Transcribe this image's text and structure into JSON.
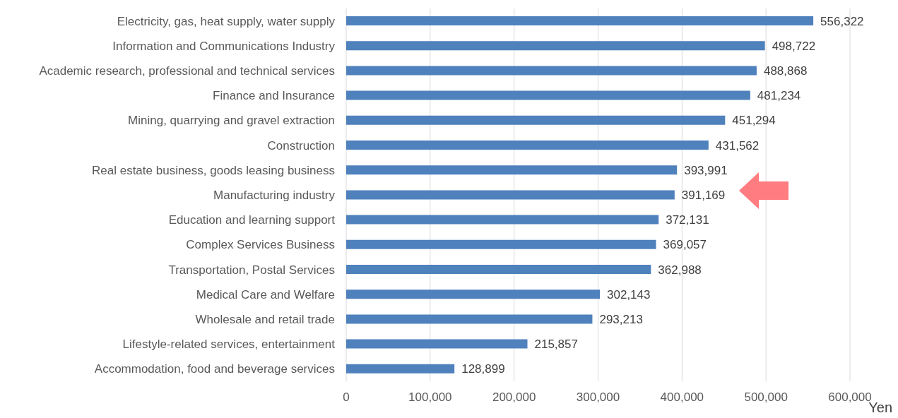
{
  "chart_data": {
    "type": "bar",
    "orientation": "horizontal",
    "categories": [
      "Electricity, gas, heat supply, water supply",
      "Information and Communications Industry",
      "Academic research, professional and technical services",
      "Finance and Insurance",
      "Mining, quarrying and gravel extraction",
      "Construction",
      "Real estate business, goods leasing business",
      "Manufacturing industry",
      "Education and learning support",
      "Complex Services Business",
      "Transportation, Postal Services",
      "Medical Care and Welfare",
      "Wholesale and retail trade",
      "Lifestyle-related services, entertainment",
      "Accommodation, food and beverage services"
    ],
    "values": [
      556322,
      498722,
      488868,
      481234,
      451294,
      431562,
      393991,
      391169,
      372131,
      369057,
      362988,
      302143,
      293213,
      215857,
      128899
    ],
    "color": "#4f81bd",
    "xlim": [
      0,
      600000
    ],
    "xticks": [
      0,
      {
        "value": 100000,
        "label": "100,000"
      },
      {
        "value": 200000,
        "label": "200,000"
      },
      {
        "value": 300000,
        "label": "300,000"
      },
      {
        "value": 400000,
        "label": "400,000"
      },
      {
        "value": 500000,
        "label": "500,000"
      },
      {
        "value": 600000,
        "label": "600,000"
      }
    ],
    "xlabel": "Yen",
    "grid": "x",
    "value_labels": [
      "556,322",
      "498,722",
      "488,868",
      "481,234",
      "451,294",
      "431,562",
      "393,991",
      "391,169",
      "372,131",
      "369,057",
      "362,988",
      "302,143",
      "293,213",
      "215,857",
      "128,899"
    ]
  }
}
